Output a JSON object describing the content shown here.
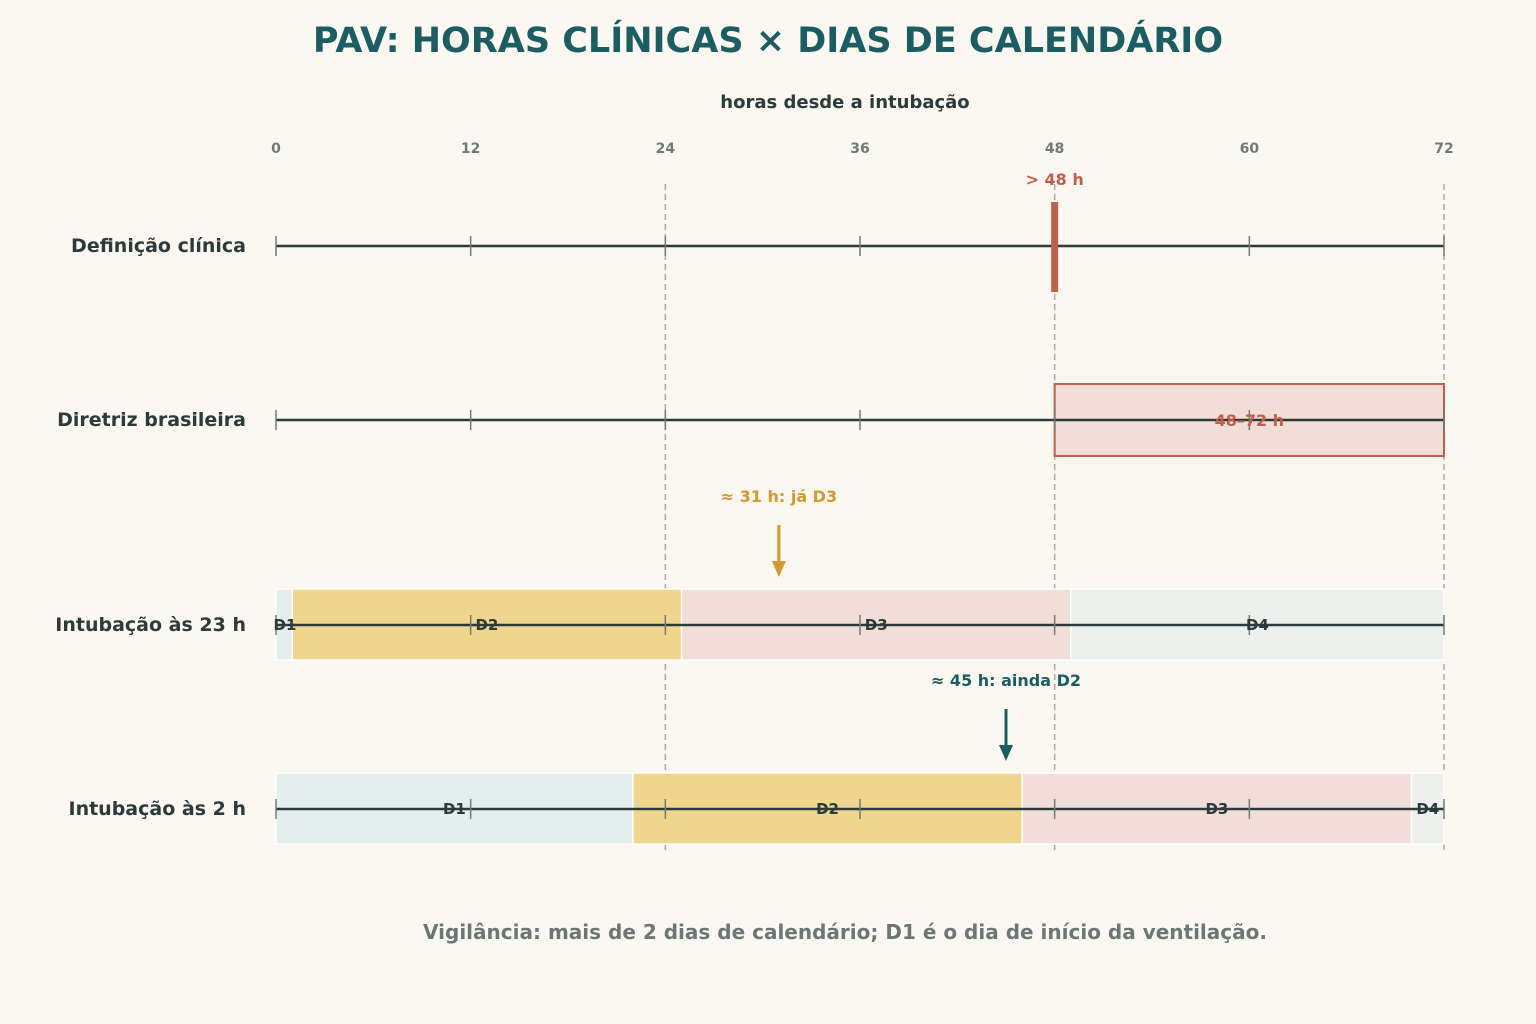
{
  "title": "PAV: HORAS CLÍNICAS × DIAS DE CALENDÁRIO",
  "axis": {
    "title": "horas desde a intubação",
    "min": 0,
    "max": 72,
    "ticks": [
      0,
      12,
      24,
      36,
      48,
      60,
      72
    ],
    "reference_lines": [
      24,
      48,
      72
    ]
  },
  "rows": [
    {
      "label": "Definição clínica",
      "marker": {
        "hour": 48,
        "label": "> 48 h"
      }
    },
    {
      "label": "Diretriz brasileira",
      "window": {
        "start": 48,
        "end": 72,
        "label": "48–72 h"
      }
    },
    {
      "label": "Intubação às 23 h",
      "segments": [
        {
          "label": "D1",
          "start": 0,
          "end": 1,
          "tone": "day1"
        },
        {
          "label": "D2",
          "start": 1,
          "end": 25,
          "tone": "day2"
        },
        {
          "label": "D3",
          "start": 25,
          "end": 49,
          "tone": "day3"
        },
        {
          "label": "D4",
          "start": 49,
          "end": 72,
          "tone": "day4"
        }
      ],
      "annotation": {
        "hour": 31,
        "label": "≈ 31 h: já D3",
        "color": "#d4982c"
      }
    },
    {
      "label": "Intubação às 2 h",
      "segments": [
        {
          "label": "D1",
          "start": 0,
          "end": 22,
          "tone": "day1"
        },
        {
          "label": "D2",
          "start": 22,
          "end": 46,
          "tone": "day2"
        },
        {
          "label": "D3",
          "start": 46,
          "end": 70,
          "tone": "day3"
        },
        {
          "label": "D4",
          "start": 70,
          "end": 72,
          "tone": "day4"
        }
      ],
      "annotation": {
        "hour": 45,
        "label": "≈ 45 h: ainda D2",
        "color": "#1a5d63"
      }
    }
  ],
  "footnote": "Vigilância: mais de 2 dias de calendário; D1 é o dia de início da ventilação.",
  "colors": {
    "title": "#1a5d63",
    "accent_red": "#c0604a",
    "accent_gold": "#d4982c",
    "accent_teal": "#1a5d63",
    "axis_line": "#2b3a3a",
    "day1": "#e5eeee",
    "day2": "#f0d68c",
    "day3": "#f2ded8",
    "day4": "#eef0ee",
    "window_fill": "#f2ded8",
    "background": "#faf8f0"
  }
}
